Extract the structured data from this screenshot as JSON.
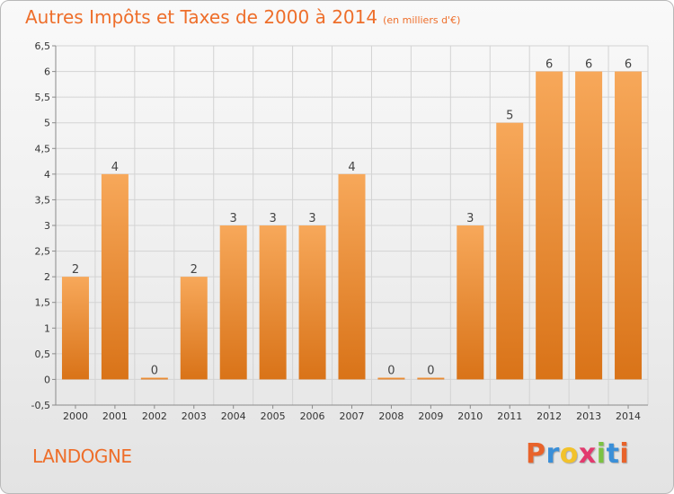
{
  "title": "Autres Impôts et Taxes de 2000 à 2014",
  "unit_label": "(en milliers d'€)",
  "commune": "LANDOGNE",
  "logo": {
    "letters": [
      "P",
      "r",
      "o",
      "x",
      "i",
      "t",
      "i"
    ],
    "colors": [
      "#e8632b",
      "#3a8fd8",
      "#f2c22b",
      "#e23a6e",
      "#7cc242",
      "#3a8fd8",
      "#e8632b"
    ]
  },
  "colors": {
    "bar_light": "#f7a85a",
    "bar_dark": "#d97318",
    "accent": "#ee6e2a",
    "grid": "#d3d3d3",
    "axis": "#8a8a8a"
  },
  "chart_data": {
    "type": "bar",
    "title": "Autres Impôts et Taxes de 2000 à 2014",
    "subtitle": "(en milliers d'€)",
    "xlabel": "",
    "ylabel": "",
    "categories": [
      "2000",
      "2001",
      "2002",
      "2003",
      "2004",
      "2005",
      "2006",
      "2007",
      "2008",
      "2009",
      "2010",
      "2011",
      "2012",
      "2013",
      "2014"
    ],
    "values": [
      2,
      4,
      0,
      2,
      3,
      3,
      3,
      4,
      0,
      0,
      3,
      5,
      6,
      6,
      6
    ],
    "data_labels": [
      "2",
      "4",
      "0",
      "2",
      "3",
      "3",
      "3",
      "4",
      "0",
      "0",
      "3",
      "5",
      "6",
      "6",
      "6"
    ],
    "ylim": [
      -0.5,
      6.5
    ],
    "yticks": [
      -0.5,
      0,
      0.5,
      1,
      1.5,
      2,
      2.5,
      3,
      3.5,
      4,
      4.5,
      5,
      5.5,
      6,
      6.5
    ],
    "ytick_labels": [
      "-0,5",
      "0",
      "0,5",
      "1",
      "1,5",
      "2",
      "2,5",
      "3",
      "3,5",
      "4",
      "4,5",
      "5",
      "5,5",
      "6",
      "6,5"
    ],
    "grid": true,
    "legend": "none"
  }
}
